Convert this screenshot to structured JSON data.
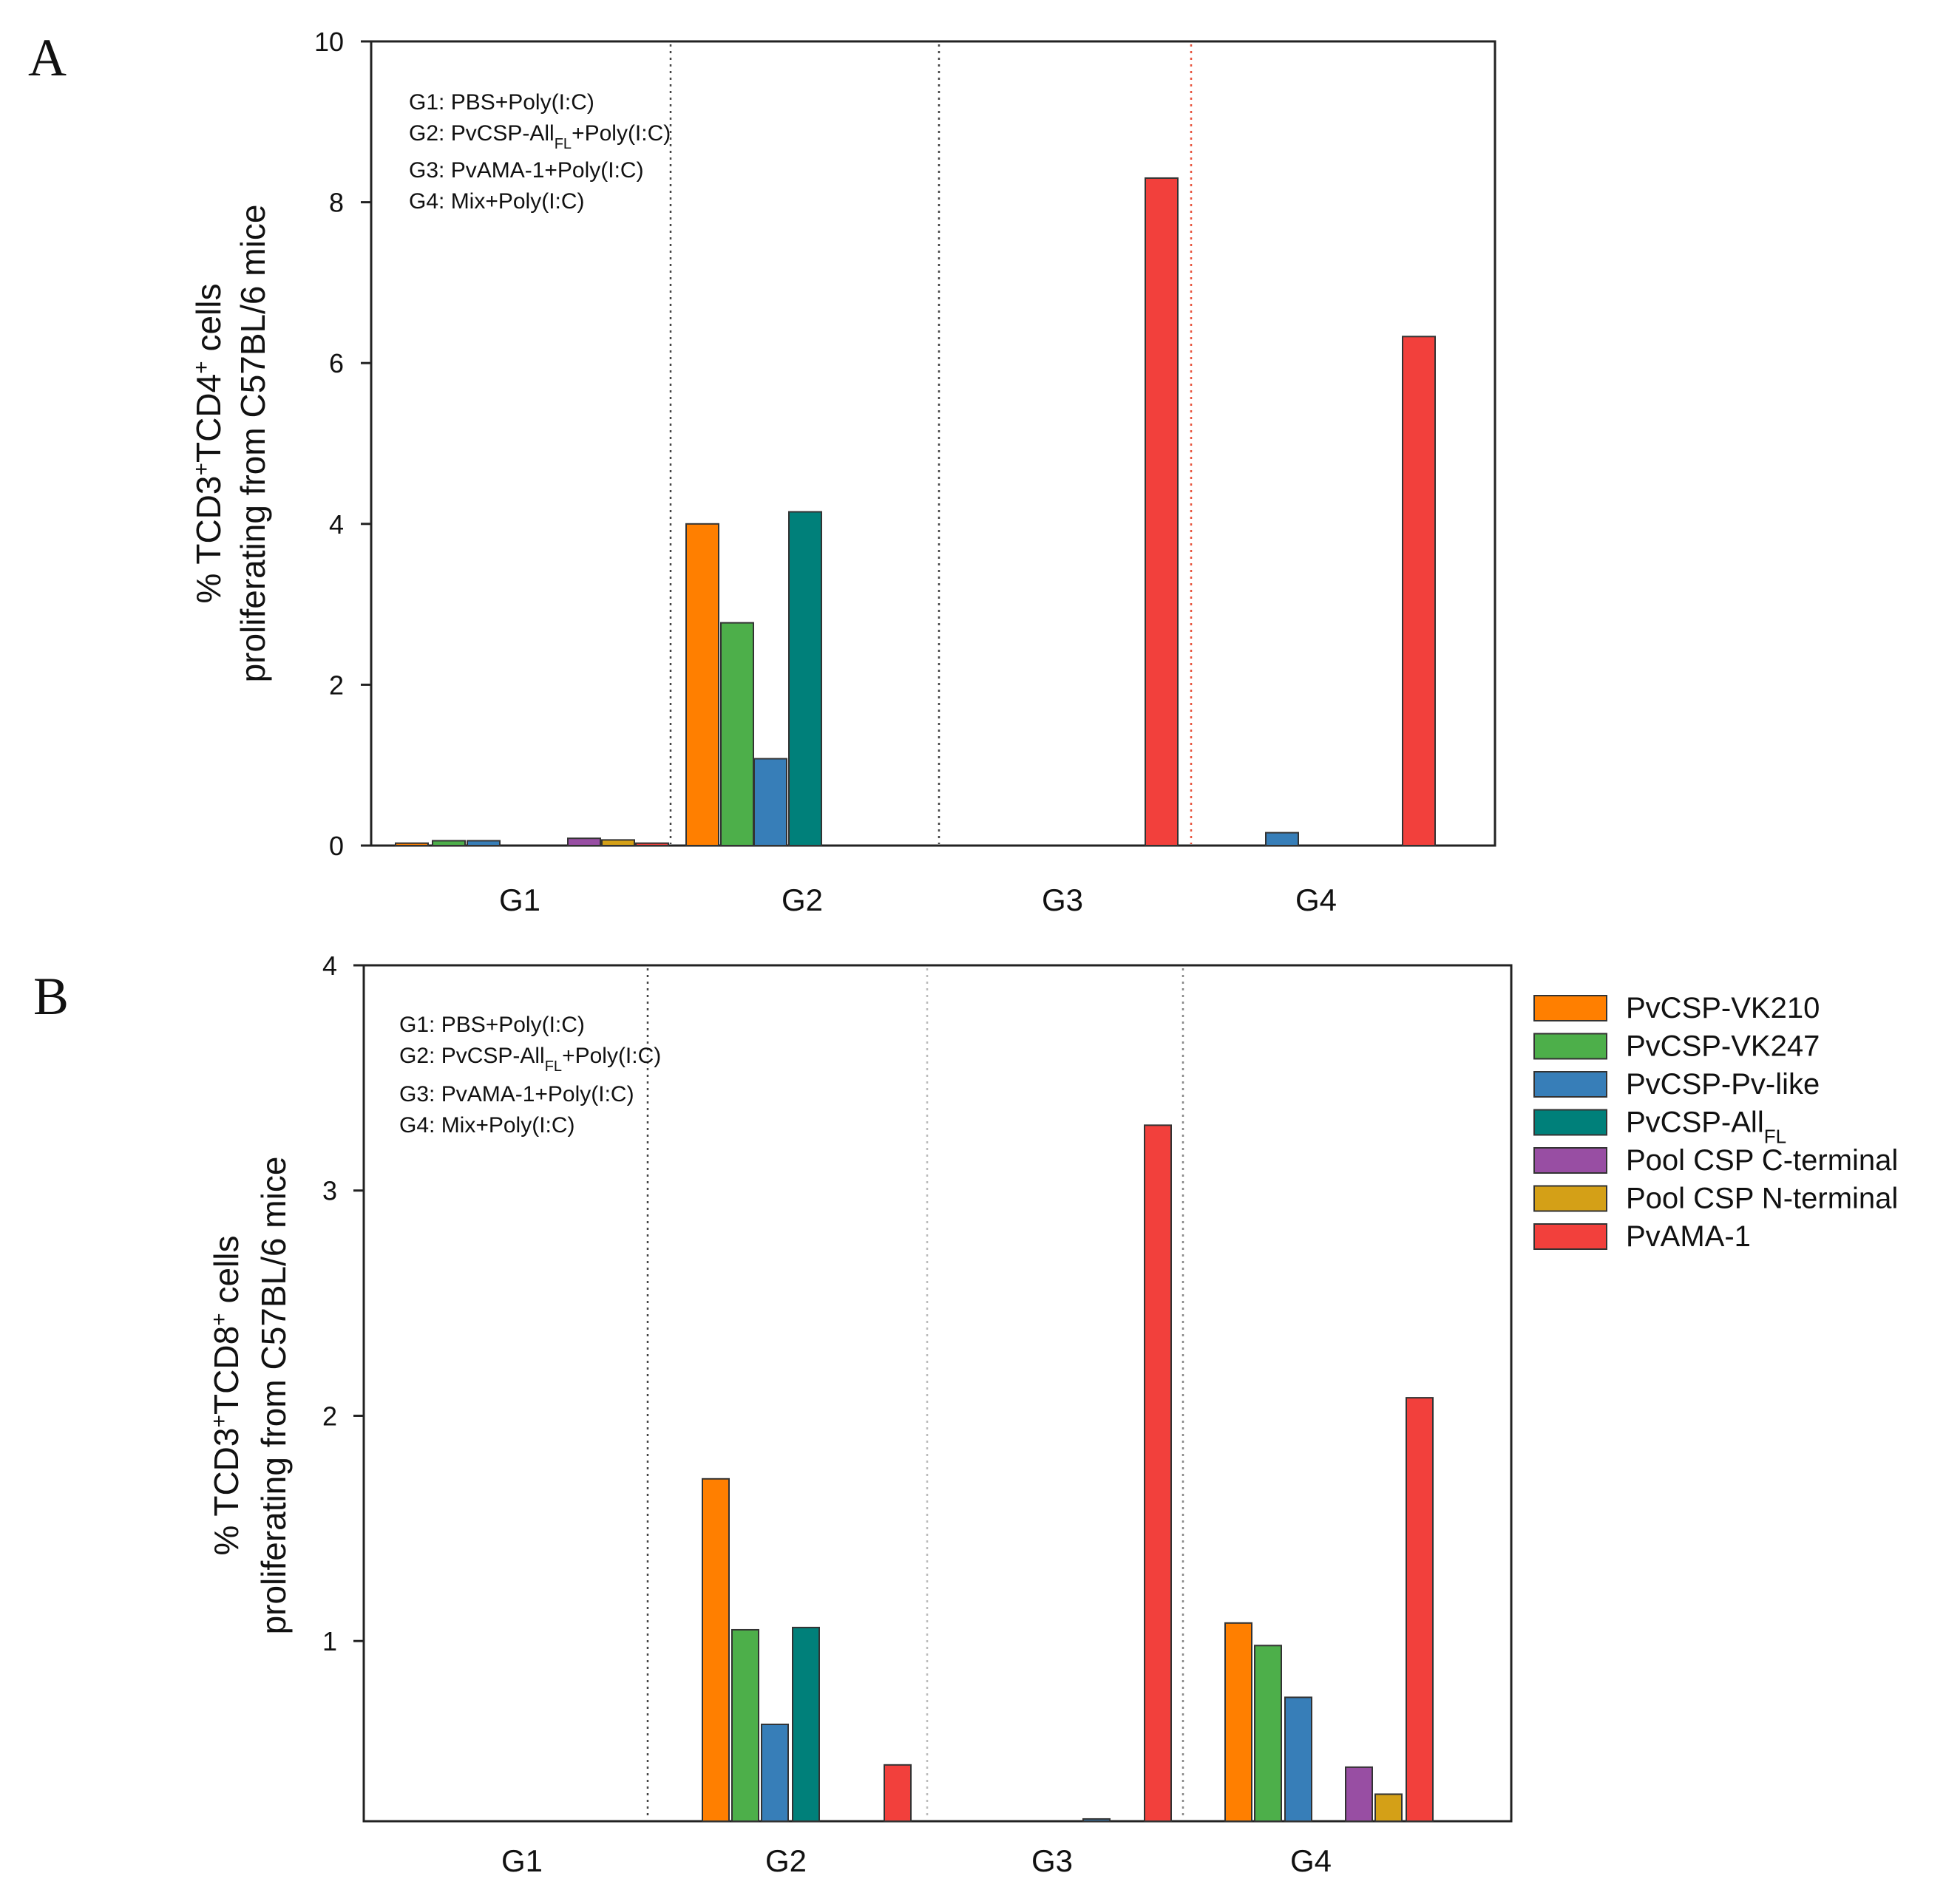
{
  "figure": {
    "panel_a_letter": "A",
    "panel_b_letter": "B"
  },
  "colors": {
    "PvCSP-VK210": "#ff7f00",
    "PvCSP-VK247": "#4daf4a",
    "PvCSP-Pv-like": "#377eb8",
    "PvCSP-AllFL": "#00807a",
    "Pool CSP C-terminal": "#984ea3",
    "Pool CSP N-terminal": "#d4a017",
    "PvAMA-1": "#f2403c"
  },
  "legend": [
    {
      "key": "PvCSP-VK210",
      "text": "PvCSP-VK210",
      "sub": ""
    },
    {
      "key": "PvCSP-VK247",
      "text": "PvCSP-VK247",
      "sub": ""
    },
    {
      "key": "PvCSP-Pv-like",
      "text": "PvCSP-Pv-like",
      "sub": ""
    },
    {
      "key": "PvCSP-AllFL",
      "text": "PvCSP-All",
      "sub": "FL"
    },
    {
      "key": "Pool CSP C-terminal",
      "text": "Pool CSP C-terminal",
      "sub": ""
    },
    {
      "key": "Pool CSP N-terminal",
      "text": "Pool CSP N-terminal",
      "sub": ""
    },
    {
      "key": "PvAMA-1",
      "text": "PvAMA-1",
      "sub": ""
    }
  ],
  "group_notes": [
    {
      "pre": "G1: PBS+Poly(I:C)",
      "sub": "",
      "post": ""
    },
    {
      "pre": "G2: PvCSP-All",
      "sub": "FL",
      "post": "+Poly(I:C)"
    },
    {
      "pre": "G3: PvAMA-1+Poly(I:C)",
      "sub": "",
      "post": ""
    },
    {
      "pre": "G4: Mix+Poly(I:C)",
      "sub": "",
      "post": ""
    }
  ],
  "chart_data": [
    {
      "panel": "A",
      "type": "bar",
      "ylabel_line1": "% TCD3+TCD4+ cells",
      "ylabel_line2": "proliferating from C57BL/6 mice",
      "ylim": [
        0,
        10
      ],
      "yticks": [
        0,
        2,
        4,
        6,
        8,
        10
      ],
      "categories": [
        "G1",
        "G2",
        "G3",
        "G4"
      ],
      "series": [
        {
          "name": "PvCSP-VK210",
          "values": [
            0.03,
            4.0,
            0,
            0
          ]
        },
        {
          "name": "PvCSP-VK247",
          "values": [
            0.06,
            2.77,
            0,
            0
          ]
        },
        {
          "name": "PvCSP-Pv-like",
          "values": [
            0.06,
            1.08,
            0,
            0.16
          ]
        },
        {
          "name": "PvCSP-AllFL",
          "values": [
            0,
            4.15,
            0,
            0
          ]
        },
        {
          "name": "Pool CSP C-terminal",
          "values": [
            0.09,
            0,
            0,
            0
          ]
        },
        {
          "name": "Pool CSP N-terminal",
          "values": [
            0.07,
            0,
            0,
            0
          ]
        },
        {
          "name": "PvAMA-1",
          "values": [
            0.03,
            0,
            8.3,
            6.33
          ]
        }
      ]
    },
    {
      "panel": "B",
      "type": "bar",
      "ylabel_line1": "% TCD3+TCD8+ cells",
      "ylabel_line2": "proliferating from C57BL/6 mice",
      "ylim": [
        0.2,
        4
      ],
      "yticks": [
        1,
        2,
        3,
        4
      ],
      "categories": [
        "G1",
        "G2",
        "G3",
        "G4"
      ],
      "series": [
        {
          "name": "PvCSP-VK210",
          "values": [
            0,
            1.72,
            0,
            1.08
          ]
        },
        {
          "name": "PvCSP-VK247",
          "values": [
            0,
            1.05,
            0,
            0.98
          ]
        },
        {
          "name": "PvCSP-Pv-like",
          "values": [
            0,
            0.63,
            0.21,
            0.75
          ]
        },
        {
          "name": "PvCSP-AllFL",
          "values": [
            0,
            1.06,
            0,
            0
          ]
        },
        {
          "name": "Pool CSP C-terminal",
          "values": [
            0,
            0,
            0,
            0.44
          ]
        },
        {
          "name": "Pool CSP N-terminal",
          "values": [
            0,
            0,
            0,
            0.32
          ]
        },
        {
          "name": "PvAMA-1",
          "values": [
            0,
            0.45,
            3.29,
            2.08
          ]
        }
      ]
    }
  ]
}
